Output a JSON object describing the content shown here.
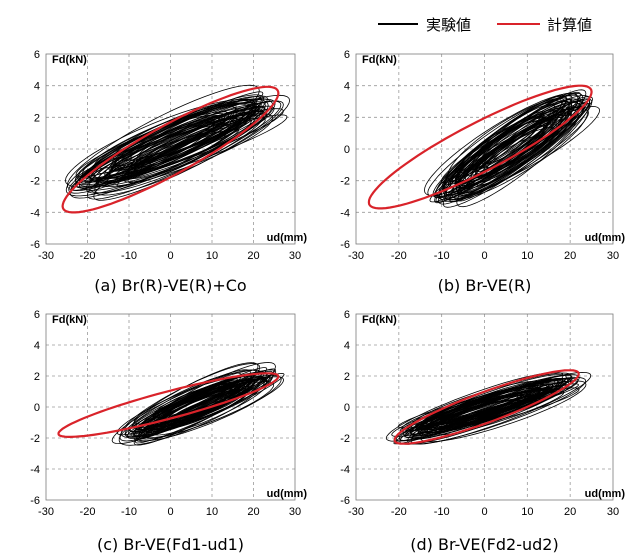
{
  "legend": {
    "experiment_label": "実験値",
    "calculation_label": "計算値",
    "experiment_color": "#000000",
    "calculation_color": "#d9232a"
  },
  "chart_data": [
    {
      "type": "line",
      "caption": "(a)  Br(R)-VE(R)+Co",
      "xlabel": "ud(mm)",
      "ylabel": "Fd(kN)",
      "xlim": [
        -30,
        30
      ],
      "ylim": [
        -6,
        6
      ],
      "x_ticks": [
        -30,
        -20,
        -10,
        0,
        10,
        20,
        30
      ],
      "y_ticks": [
        -6,
        -4,
        -2,
        0,
        2,
        4,
        6
      ],
      "grid": "dashed",
      "series": [
        {
          "role": "experiment",
          "style": "hysteresis-loops",
          "x_range": [
            -22,
            25
          ],
          "y_range": [
            -3.3,
            3.9
          ]
        },
        {
          "role": "calculation",
          "style": "ellipse-loop",
          "x_range": [
            -26,
            26
          ],
          "y_range": [
            -4.4,
            4.3
          ]
        }
      ]
    },
    {
      "type": "line",
      "caption": "(b)  Br-VE(R)",
      "xlabel": "ud(mm)",
      "ylabel": "Fd(kN)",
      "xlim": [
        -30,
        30
      ],
      "ylim": [
        -6,
        6
      ],
      "x_ticks": [
        -30,
        -20,
        -10,
        0,
        10,
        20,
        30
      ],
      "y_ticks": [
        -6,
        -4,
        -2,
        0,
        2,
        4,
        6
      ],
      "grid": "dashed",
      "series": [
        {
          "role": "experiment",
          "style": "hysteresis-loops",
          "x_range": [
            -12,
            24
          ],
          "y_range": [
            -4.2,
            4.4
          ]
        },
        {
          "role": "calculation",
          "style": "ellipse-loop",
          "x_range": [
            -27,
            25
          ],
          "y_range": [
            -4.1,
            4.4
          ]
        }
      ]
    },
    {
      "type": "line",
      "caption": "(c)  Br-VE(Fd1-ud1)",
      "xlabel": "ud(mm)",
      "ylabel": "Fd(kN)",
      "xlim": [
        -30,
        30
      ],
      "ylim": [
        -6,
        6
      ],
      "x_ticks": [
        -30,
        -20,
        -10,
        0,
        10,
        20,
        30
      ],
      "y_ticks": [
        -6,
        -4,
        -2,
        0,
        2,
        4,
        6
      ],
      "grid": "dashed",
      "series": [
        {
          "role": "experiment",
          "style": "hysteresis-loops",
          "x_range": [
            -11,
            25
          ],
          "y_range": [
            -2.8,
            3.0
          ]
        },
        {
          "role": "calculation",
          "style": "ellipse-loop",
          "x_range": [
            -27,
            26
          ],
          "y_range": [
            -2.1,
            2.4
          ]
        }
      ]
    },
    {
      "type": "line",
      "caption": "(d)  Br-VE(Fd2-ud2)",
      "xlabel": "ud(mm)",
      "ylabel": "Fd(kN)",
      "xlim": [
        -30,
        30
      ],
      "ylim": [
        -6,
        6
      ],
      "x_ticks": [
        -30,
        -20,
        -10,
        0,
        10,
        20,
        30
      ],
      "y_ticks": [
        -6,
        -4,
        -2,
        0,
        2,
        4,
        6
      ],
      "grid": "dashed",
      "series": [
        {
          "role": "experiment",
          "style": "hysteresis-loops",
          "x_range": [
            -20,
            22
          ],
          "y_range": [
            -2.6,
            2.4
          ]
        },
        {
          "role": "calculation",
          "style": "ellipse-loop",
          "x_range": [
            -21,
            22
          ],
          "y_range": [
            -2.6,
            2.6
          ]
        }
      ]
    }
  ]
}
